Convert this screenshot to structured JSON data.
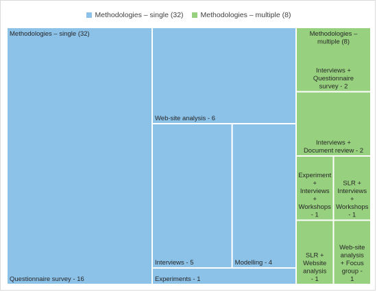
{
  "chart_data": {
    "type": "treemap",
    "legend": [
      {
        "name": "Methodologies – single (32)",
        "color": "#8cc1e8"
      },
      {
        "name": "Methodologies – multiple (8)",
        "color": "#97d07e"
      }
    ],
    "groups": [
      {
        "name": "Methodologies – single (32)",
        "color": "#8cc1e8",
        "items": [
          {
            "label": "Questionnaire survey - 16",
            "value": 16
          },
          {
            "label": "Web-site analysis - 6",
            "value": 6
          },
          {
            "label": "Interviews - 5",
            "value": 5
          },
          {
            "label": "Modelling - 4",
            "value": 4
          },
          {
            "label": "Experiments - 1",
            "value": 1
          }
        ]
      },
      {
        "name": "Methodologies – multiple (8)",
        "color": "#97d07e",
        "items": [
          {
            "label": "Interviews + Questionnaire survey - 2",
            "value": 2
          },
          {
            "label": "Interviews + Document review - 2",
            "value": 2
          },
          {
            "label": "Experiment + Interviews + Workshops - 1",
            "value": 1
          },
          {
            "label": "SLR + Interviews + Workshops - 1",
            "value": 1
          },
          {
            "label": "SLR + Website analysis - 1",
            "value": 1
          },
          {
            "label": "Web-site analysis + Focus group - 1",
            "value": 1
          }
        ]
      }
    ]
  }
}
